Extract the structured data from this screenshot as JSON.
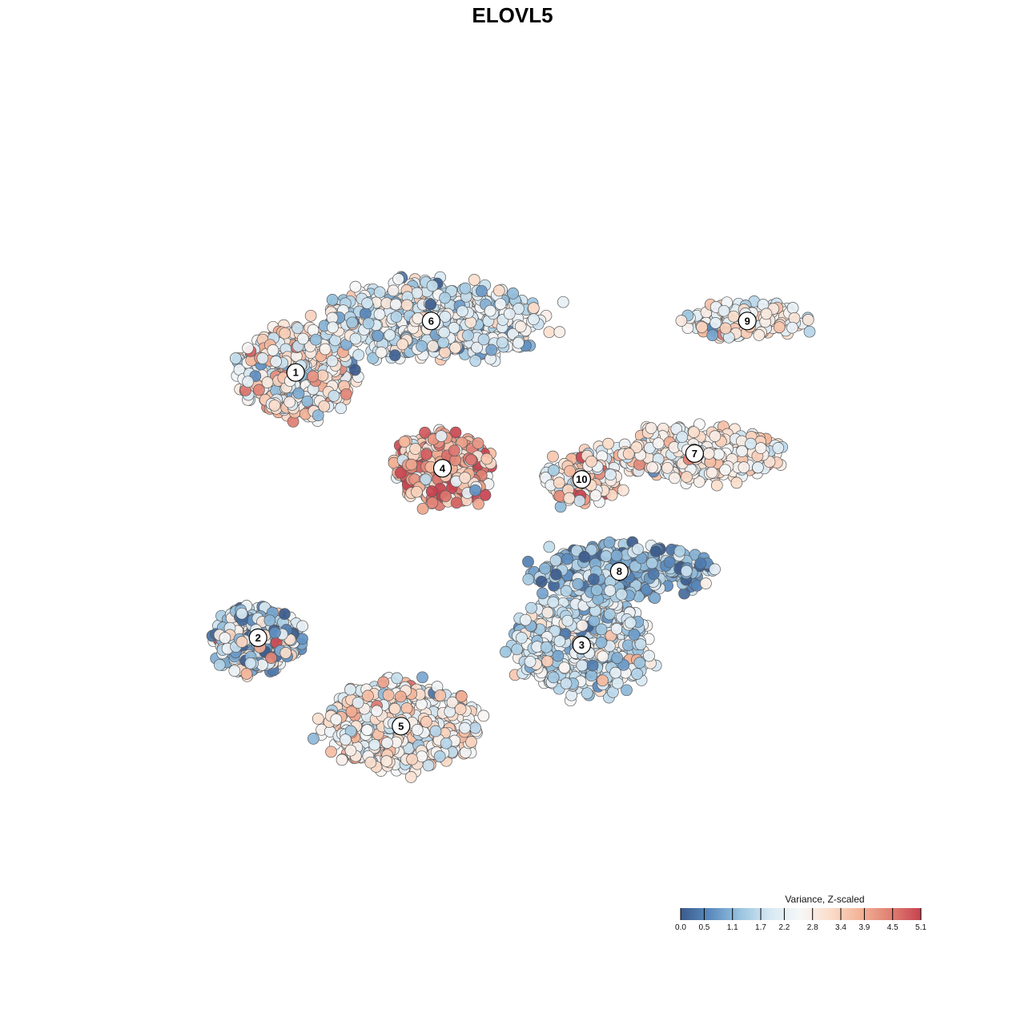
{
  "chart_data": {
    "type": "scatter",
    "title": "ELOVL5",
    "xlabel": "",
    "ylabel": "",
    "xlim": [
      0,
      1000
    ],
    "ylim": [
      0,
      1000
    ],
    "grid": false,
    "point_style": "filled circles with dark grey outline, colored by scaled variance",
    "clusters": [
      {
        "label": "1",
        "x": 180,
        "y": 690,
        "spread": [
          70,
          55
        ],
        "n": 560,
        "color_mean": 2.6,
        "color_sd": 0.9
      },
      {
        "label": "2",
        "x": 130,
        "y": 330,
        "spread": [
          55,
          45
        ],
        "n": 320,
        "color_mean": 1.8,
        "color_sd": 1.0
      },
      {
        "label": "3",
        "x": 560,
        "y": 320,
        "spread": [
          85,
          60
        ],
        "n": 620,
        "color_mean": 1.9,
        "color_sd": 0.7
      },
      {
        "label": "4",
        "x": 375,
        "y": 560,
        "spread": [
          60,
          45
        ],
        "n": 380,
        "color_mean": 3.8,
        "color_sd": 1.0
      },
      {
        "label": "5",
        "x": 320,
        "y": 210,
        "spread": [
          95,
          55
        ],
        "n": 600,
        "color_mean": 2.6,
        "color_sd": 0.7
      },
      {
        "label": "6",
        "x": 360,
        "y": 760,
        "spread": [
          140,
          50
        ],
        "n": 700,
        "color_mean": 2.1,
        "color_sd": 0.7
      },
      {
        "label": "7",
        "x": 710,
        "y": 580,
        "spread": [
          110,
          35
        ],
        "n": 380,
        "color_mean": 2.7,
        "color_sd": 0.6
      },
      {
        "label": "8",
        "x": 610,
        "y": 420,
        "spread": [
          110,
          35
        ],
        "n": 360,
        "color_mean": 1.1,
        "color_sd": 0.7
      },
      {
        "label": "9",
        "x": 780,
        "y": 760,
        "spread": [
          80,
          25
        ],
        "n": 170,
        "color_mean": 2.6,
        "color_sd": 0.7
      },
      {
        "label": "10",
        "x": 560,
        "y": 545,
        "spread": [
          45,
          35
        ],
        "n": 150,
        "color_mean": 3.1,
        "color_sd": 0.8
      }
    ],
    "legend": {
      "title": "Variance, Z-scaled",
      "placement": "bottom-right",
      "ticks": [
        0.0,
        0.5,
        1.1,
        1.7,
        2.2,
        2.8,
        3.4,
        3.9,
        4.5,
        5.1
      ],
      "tick_labels": [
        "0.0",
        "0.5",
        "1.1",
        "1.7",
        "2.2",
        "2.8",
        "3.4",
        "3.9",
        "4.5",
        "5.1"
      ],
      "range": [
        0.0,
        5.1
      ],
      "colors": [
        "#3b5b8c",
        "#5b8cc0",
        "#9bc5e0",
        "#d8e9f3",
        "#f7f7f7",
        "#fbdcc9",
        "#f3b296",
        "#e07f73",
        "#c7424f"
      ]
    }
  }
}
